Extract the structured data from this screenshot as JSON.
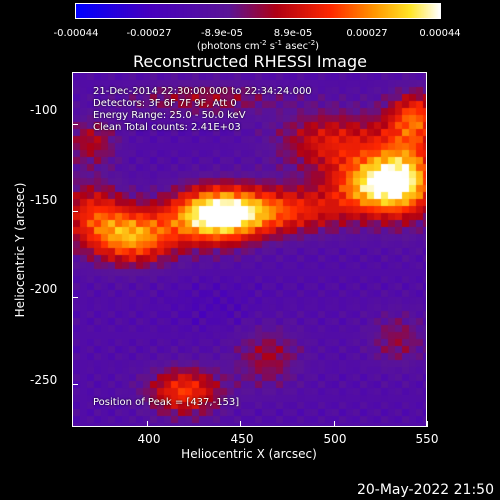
{
  "colorbar": {
    "tick_labels": [
      "-0.00044",
      "-0.00027",
      "-8.9e-05",
      "8.9e-05",
      "0.00027",
      "0.00044"
    ],
    "unit_main": "(photons cm",
    "unit_sup1": "-2",
    "unit_mid": " s",
    "unit_sup2": "-1",
    "unit_mid2": " asec",
    "unit_sup3": "-2",
    "unit_end": ")"
  },
  "chart_data": {
    "type": "heatmap",
    "title": "Reconstructed RHESSI Image",
    "xlabel": "Heliocentric X (arcsec)",
    "ylabel": "Heliocentric Y (arcsec)",
    "xlim": [
      360,
      550
    ],
    "ylim": [
      -275,
      -70
    ],
    "xticks": [
      "400",
      "450",
      "500",
      "550"
    ],
    "yticks": [
      "-100",
      "-150",
      "-200",
      "-250"
    ],
    "colormap": "blue-purple-red-yellow-white",
    "value_range": [
      -0.00044,
      0.00044
    ],
    "annotations": [
      "21-Dec-2014 22:30:00.000 to 22:34:24.000",
      "Detectors: 3F 6F 7F 9F, Att 0",
      "Energy Range: 25.0 - 50.0 keV",
      "Clean     Total counts: 2.41E+03"
    ],
    "peak_label": "Position of Peak = [437,-153]",
    "peak": [
      437,
      -153
    ],
    "sources": [
      {
        "x": 525,
        "y": -135,
        "relative_intensity": 0.9
      },
      {
        "x": 437,
        "y": -153,
        "relative_intensity": 1.0
      },
      {
        "x": 392,
        "y": -165,
        "relative_intensity": 0.8
      },
      {
        "x": 420,
        "y": -255,
        "relative_intensity": 0.6
      }
    ]
  },
  "footer": {
    "timestamp": "20-May-2022 21:50"
  }
}
